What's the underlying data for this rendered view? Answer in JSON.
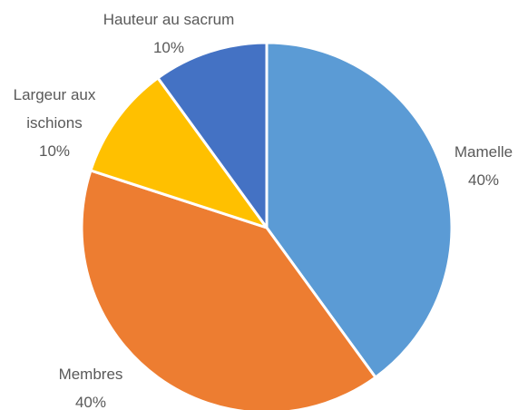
{
  "chart_data": {
    "type": "pie",
    "categories": [
      "Mamelle",
      "Membres",
      "Largeur aux ischions",
      "Hauteur au sacrum"
    ],
    "values": [
      40,
      40,
      10,
      10
    ],
    "value_labels": [
      "40%",
      "40%",
      "10%",
      "10%"
    ],
    "colors": [
      "#5b9bd5",
      "#ed7d31",
      "#ffc000",
      "#4472c4"
    ]
  }
}
